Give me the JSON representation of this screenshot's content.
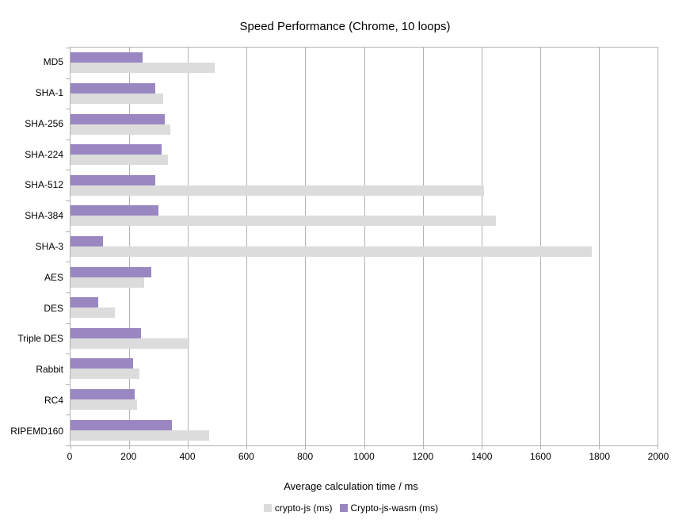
{
  "title": "Speed Performance (Chrome, 10 loops)",
  "chart_data": {
    "type": "bar",
    "orientation": "horizontal",
    "title": "Speed Performance (Chrome, 10 loops)",
    "xlabel": "Average calculation time / ms",
    "ylabel": "",
    "xlim": [
      0,
      2000
    ],
    "xticks": [
      0,
      200,
      400,
      600,
      800,
      1000,
      1200,
      1400,
      1600,
      1800,
      2000
    ],
    "grid": true,
    "legend_position": "bottom",
    "categories": [
      "MD5",
      "SHA-1",
      "SHA-256",
      "SHA-224",
      "SHA-512",
      "SHA-384",
      "SHA-3",
      "AES",
      "DES",
      "Triple DES",
      "Rabbit",
      "RC4",
      "RIPEMD160"
    ],
    "series": [
      {
        "name": "crypto-js (ms)",
        "color": "#dcdcdc",
        "values": [
          490,
          315,
          340,
          333,
          1410,
          1450,
          1775,
          250,
          150,
          405,
          235,
          228,
          472
        ]
      },
      {
        "name": "Crypto-js-wasm (ms)",
        "color": "#9a87c1",
        "values": [
          245,
          290,
          320,
          310,
          290,
          300,
          110,
          275,
          95,
          240,
          212,
          218,
          345
        ]
      }
    ]
  },
  "colors": {
    "axis": "#b3b3b3",
    "grid": "#b3b3b3",
    "background": "#ffffff",
    "text": "#000000"
  }
}
